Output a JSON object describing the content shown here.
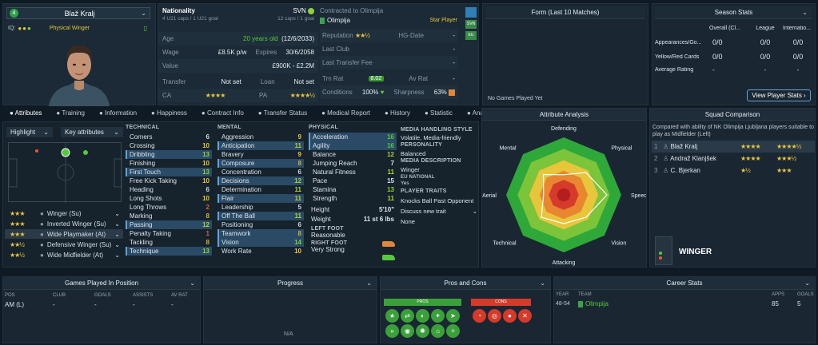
{
  "player": {
    "number": "4",
    "name": "Blaž Kralj",
    "role": "Physical Winger",
    "iq_label": "IQ:"
  },
  "info": {
    "nationality_label": "Nationality",
    "nationality": "SVN",
    "caps": "4 U21 caps / 1 U21 goal",
    "caps2": "12 caps / 1 goal",
    "age_label": "Age",
    "age": "20 years old",
    "dob": "(12/6/2033)",
    "wage_label": "Wage",
    "wage": "£8.5K p/w",
    "expires_label": "Expires",
    "expires": "30/6/2058",
    "value_label": "Value",
    "value": "£900K - £2.2M",
    "transfer_label": "Transfer",
    "transfer": "Not set",
    "loan_label": "Loan",
    "loan": "Not set",
    "ca_label": "CA",
    "pa_label": "PA",
    "contracted_label": "Contracted to Olimpija",
    "club": "Olimpija",
    "star_label": "Star Player",
    "reputation_label": "Reputation",
    "hg_label": "HG-Date",
    "hg_value": "-",
    "last_club_label": "Last Club",
    "last_club": "-",
    "last_fee_label": "Last Transfer Fee",
    "last_fee": "-",
    "trn_rat_label": "Trn Rat",
    "trn_rat": "8.02",
    "av_rat_label": "Av Rat",
    "av_rat": "-",
    "conditions_label": "Conditions",
    "conditions": "100%",
    "sharpness_label": "Sharpness",
    "sharpness": "63%",
    "side_badges": [
      "",
      "SVN",
      "EU"
    ]
  },
  "form": {
    "title": "Form (Last 10 Matches)",
    "empty": "No Games Played Yet"
  },
  "season": {
    "title": "Season Stats",
    "cols": [
      "Overall (Cl...",
      "League",
      "Internatio..."
    ],
    "rows": [
      {
        "label": "Appearances/Go...",
        "vals": [
          "0/0",
          "0/0",
          "0/0"
        ]
      },
      {
        "label": "Yellow/Red Cards",
        "vals": [
          "0/0",
          "0/0",
          "0/0"
        ]
      },
      {
        "label": "Average Rating",
        "vals": [
          "-",
          "-",
          "-"
        ]
      }
    ],
    "button": "View Player Stats"
  },
  "tabs": [
    "Attributes",
    "Training",
    "Information",
    "Happiness",
    "Contract Info",
    "Transfer Status",
    "Medical Report",
    "History",
    "Statistic",
    "Analysis"
  ],
  "attr_controls": {
    "highlight": "Highlight",
    "key": "Key attributes"
  },
  "roles": [
    {
      "name": "Winger (Su)",
      "stars": "★★★",
      "sel": false
    },
    {
      "name": "Inverted Winger (Su)",
      "stars": "★★★",
      "sel": false
    },
    {
      "name": "Wide Playmaker (At)",
      "stars": "★★★",
      "sel": true
    },
    {
      "name": "Defensive Winger (Su)",
      "stars": "★★½",
      "sel": false
    },
    {
      "name": "Wide Midfielder (At)",
      "stars": "★★½",
      "sel": false
    }
  ],
  "technical": {
    "title": "TECHNICAL",
    "items": [
      [
        "Corners",
        "6"
      ],
      [
        "Crossing",
        "10"
      ],
      [
        "Dribbling",
        "13"
      ],
      [
        "Finishing",
        "10"
      ],
      [
        "First Touch",
        "13"
      ],
      [
        "Free Kick Taking",
        "10"
      ],
      [
        "Heading",
        "6"
      ],
      [
        "Long Shots",
        "10"
      ],
      [
        "Long Throws",
        "2"
      ],
      [
        "Marking",
        "8"
      ],
      [
        "Passing",
        "12"
      ],
      [
        "Penalty Taking",
        "1"
      ],
      [
        "Tackling",
        "8"
      ],
      [
        "Technique",
        "13"
      ]
    ]
  },
  "mental": {
    "title": "MENTAL",
    "items": [
      [
        "Aggression",
        "9"
      ],
      [
        "Anticipation",
        "11"
      ],
      [
        "Bravery",
        "9"
      ],
      [
        "Composure",
        "8"
      ],
      [
        "Concentration",
        "6"
      ],
      [
        "Decisions",
        "12"
      ],
      [
        "Determination",
        "11"
      ],
      [
        "Flair",
        "11"
      ],
      [
        "Leadership",
        "5"
      ],
      [
        "Off The Ball",
        "11"
      ],
      [
        "Positioning",
        "6"
      ],
      [
        "Teamwork",
        "8"
      ],
      [
        "Vision",
        "14"
      ],
      [
        "Work Rate",
        "10"
      ]
    ]
  },
  "physical": {
    "title": "PHYSICAL",
    "items": [
      [
        "Acceleration",
        "16"
      ],
      [
        "Agility",
        "16"
      ],
      [
        "Balance",
        "12"
      ],
      [
        "Jumping Reach",
        "7"
      ],
      [
        "Natural Fitness",
        "11"
      ],
      [
        "Pace",
        "15"
      ],
      [
        "Stamina",
        "13"
      ],
      [
        "Strength",
        "11"
      ]
    ],
    "height_label": "Height",
    "height": "5'10\"",
    "weight_label": "Weight",
    "weight": "11 st 6 lbs",
    "left_foot_label": "LEFT FOOT",
    "left_foot": "Reasonable",
    "right_foot_label": "RIGHT FOOT",
    "right_foot": "Very Strong"
  },
  "media": {
    "style_label": "MEDIA HANDLING STYLE",
    "style": "Volatile, Media-friendly",
    "personality_label": "PERSONALITY",
    "personality": "Balanced",
    "desc_label": "MEDIA DESCRIPTION",
    "desc": "Winger",
    "eu_label": "EU NATIONAL",
    "eu": "Yes",
    "traits_label": "PLAYER TRAITS",
    "trait1": "Knocks Ball Past Opponent",
    "discuss": "Discuss new trait",
    "none": "None"
  },
  "analysis": {
    "title": "Attribute Analysis",
    "labels": [
      "Defending",
      "Physical",
      "Speed",
      "Vision",
      "Attacking",
      "Technical",
      "Aerial",
      "Mental"
    ],
    "values": [
      0.35,
      0.55,
      0.75,
      0.55,
      0.5,
      0.55,
      0.35,
      0.5
    ]
  },
  "squad": {
    "title": "Squad Comparison",
    "desc": "Compared with ability of NK Olimpija Ljubljana players suitable to play as Midfielder (Left)",
    "rows": [
      {
        "rank": "1",
        "name": "Blaž Kralj",
        "ca": "★★★★",
        "pa": "★★★★½"
      },
      {
        "rank": "2",
        "name": "Andraž Klanjšek",
        "ca": "★★★★",
        "pa": "★★★½"
      },
      {
        "rank": "3",
        "name": "C. Bjerkan",
        "ca": "★½",
        "pa": "★★★"
      }
    ],
    "position": "WINGER"
  },
  "games": {
    "title": "Games Played In Position",
    "cols": [
      "POS",
      "CLUB",
      "GOALS",
      "ASSISTS",
      "AV RAT"
    ],
    "row": [
      "AM (L)",
      "-",
      "-",
      "-",
      "-"
    ]
  },
  "progress": {
    "title": "Progress",
    "na": "N/A"
  },
  "pros": {
    "title": "Pros and Cons",
    "pros_label": "PROS",
    "cons_label": "CONS"
  },
  "career": {
    "title": "Career Stats",
    "cols": [
      "YEAR",
      "TEAM",
      "APPS",
      "GOALS"
    ],
    "row": {
      "year": "48-54",
      "team": "Olimpija",
      "apps": "85",
      "goals": "5"
    }
  }
}
